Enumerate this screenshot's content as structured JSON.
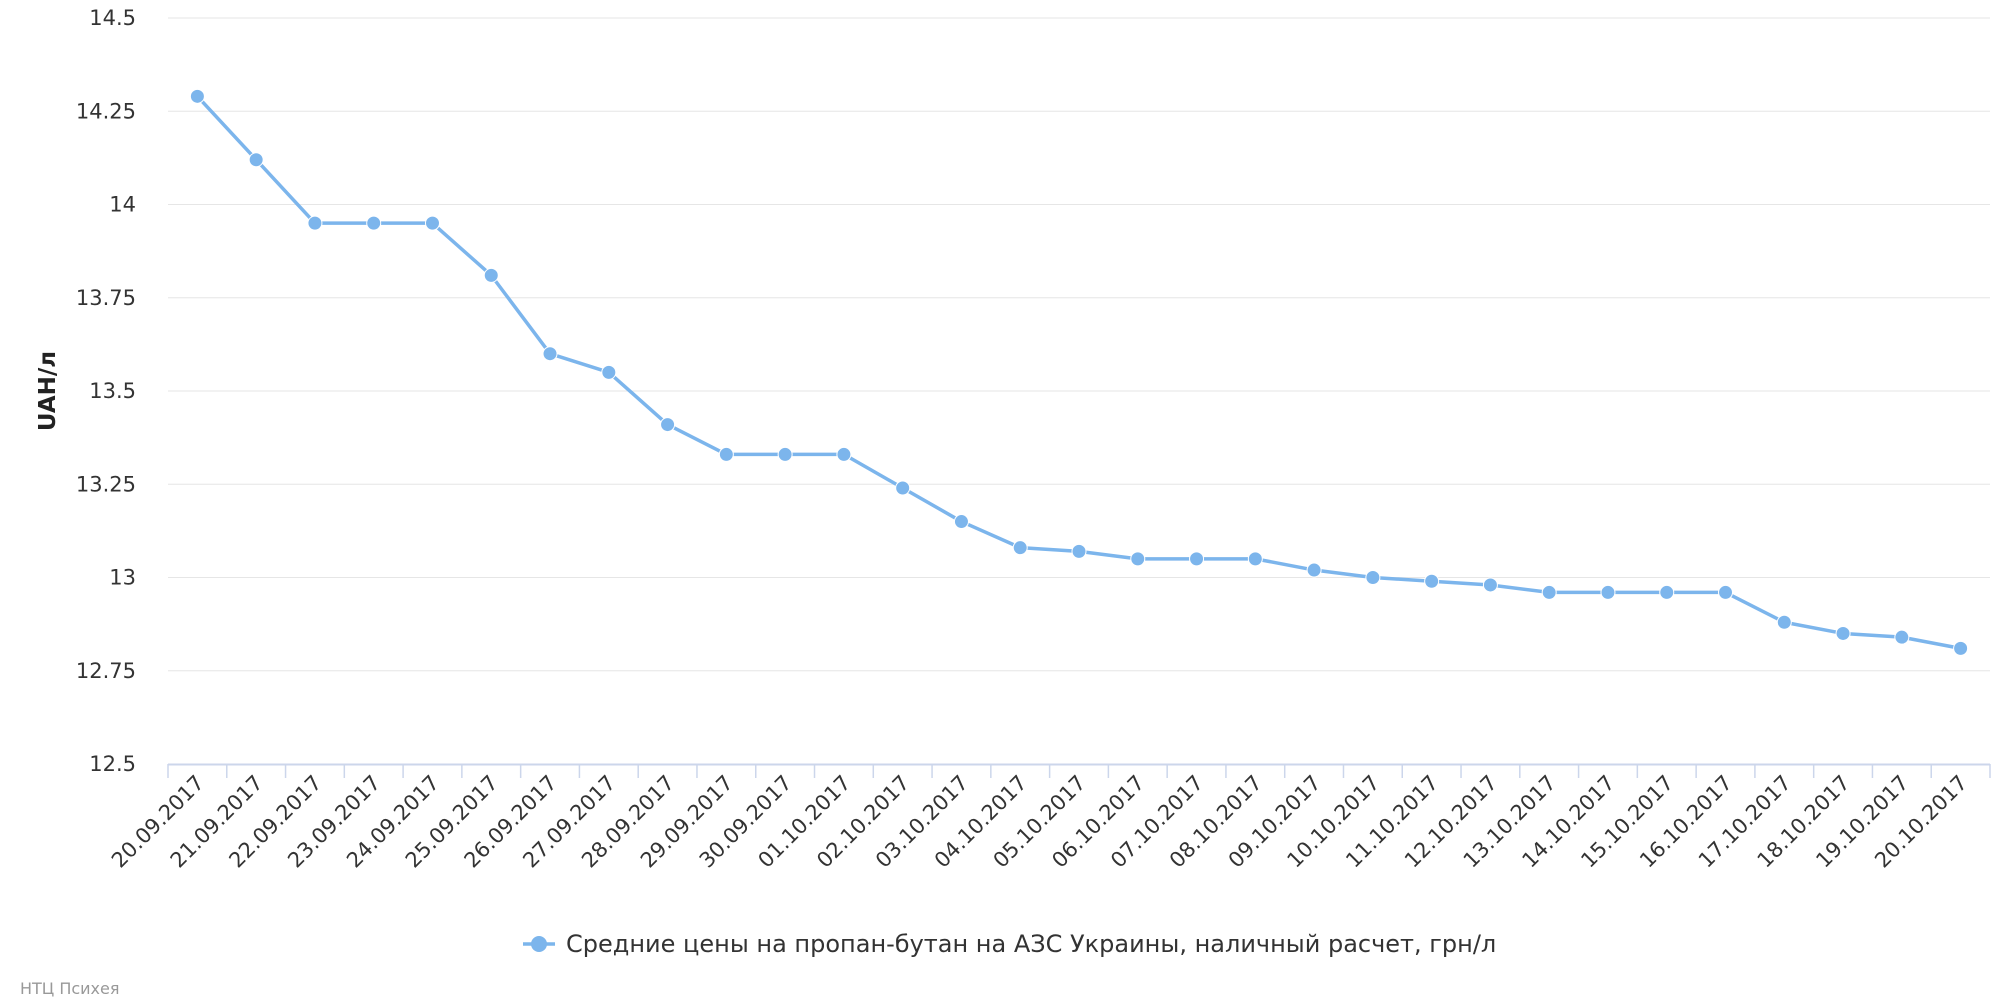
{
  "chart_data": {
    "type": "line",
    "ylabel": "UAH/л",
    "ylim": [
      12.5,
      14.5
    ],
    "yticks": [
      "14.5",
      "14.25",
      "14",
      "13.75",
      "13.5",
      "13.25",
      "13",
      "12.75",
      "12.5"
    ],
    "grid": true,
    "legend_position": "bottom",
    "categories": [
      "20.09.2017",
      "21.09.2017",
      "22.09.2017",
      "23.09.2017",
      "24.09.2017",
      "25.09.2017",
      "26.09.2017",
      "27.09.2017",
      "28.09.2017",
      "29.09.2017",
      "30.09.2017",
      "01.10.2017",
      "02.10.2017",
      "03.10.2017",
      "04.10.2017",
      "05.10.2017",
      "06.10.2017",
      "07.10.2017",
      "08.10.2017",
      "09.10.2017",
      "10.10.2017",
      "11.10.2017",
      "12.10.2017",
      "13.10.2017",
      "14.10.2017",
      "15.10.2017",
      "16.10.2017",
      "17.10.2017",
      "18.10.2017",
      "19.10.2017",
      "20.10.2017"
    ],
    "series": [
      {
        "name": "Средние цены на пропан-бутан на АЗС Украины, наличный расчет, грн/л",
        "color": "#7cb5ec",
        "values": [
          14.29,
          14.12,
          13.95,
          13.95,
          13.95,
          13.81,
          13.6,
          13.55,
          13.41,
          13.33,
          13.33,
          13.33,
          13.24,
          13.15,
          13.08,
          13.07,
          13.05,
          13.05,
          13.05,
          13.02,
          13.0,
          12.99,
          12.98,
          12.96,
          12.96,
          12.96,
          12.96,
          12.88,
          12.85,
          12.84,
          12.81
        ]
      }
    ]
  },
  "credits": "НТЦ Психея"
}
